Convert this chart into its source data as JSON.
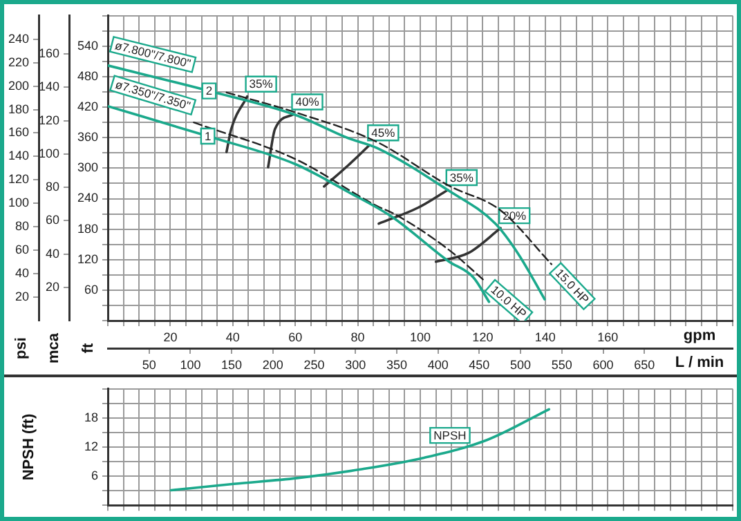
{
  "chart_data": [
    {
      "type": "line",
      "xlabel": "gpm",
      "x2label": "L / min",
      "ylabel": "ft",
      "y2label": "mca",
      "y3label": "psi",
      "marker": "none",
      "grid": true,
      "xlim": [
        0,
        200
      ],
      "xticks": [
        {
          "value": 0,
          "label": null
        },
        {
          "value": 5,
          "label": null
        },
        {
          "value": 10,
          "label": null
        },
        {
          "value": 15,
          "label": null
        },
        20,
        {
          "value": 25,
          "label": null
        },
        {
          "value": 30,
          "label": null
        },
        {
          "value": 35,
          "label": null
        },
        40,
        {
          "value": 45,
          "label": null
        },
        {
          "value": 50,
          "label": null
        },
        {
          "value": 55,
          "label": null
        },
        60,
        {
          "value": 65,
          "label": null
        },
        {
          "value": 70,
          "label": null
        },
        {
          "value": 75,
          "label": null
        },
        80,
        {
          "value": 85,
          "label": null
        },
        {
          "value": 90,
          "label": null
        },
        {
          "value": 95,
          "label": null
        },
        100,
        {
          "value": 105,
          "label": null
        },
        {
          "value": 110,
          "label": null
        },
        {
          "value": 115,
          "label": null
        },
        120,
        {
          "value": 125,
          "label": null
        },
        {
          "value": 130,
          "label": null
        },
        {
          "value": 135,
          "label": null
        },
        140,
        {
          "value": 145,
          "label": null
        },
        {
          "value": 150,
          "label": null
        },
        {
          "value": 155,
          "label": null
        },
        160,
        {
          "value": 165,
          "label": null
        },
        {
          "value": 170,
          "label": null
        },
        {
          "value": 175,
          "label": null
        },
        {
          "value": 180,
          "label": null
        },
        {
          "value": 185,
          "label": null
        },
        {
          "value": 190,
          "label": null
        },
        {
          "value": 195,
          "label": null
        },
        {
          "value": 200,
          "label": null
        }
      ],
      "x2lim": [
        0,
        757
      ],
      "x2ticks": [
        50,
        100,
        150,
        200,
        250,
        300,
        350,
        400,
        450,
        500,
        550,
        600,
        650
      ],
      "ylim": [
        0,
        600
      ],
      "yticks": [
        {
          "value": 0,
          "label": null
        },
        {
          "value": 30,
          "label": null
        },
        60,
        {
          "value": 90,
          "label": null
        },
        120,
        {
          "value": 150,
          "label": null
        },
        180,
        {
          "value": 210,
          "label": null
        },
        240,
        {
          "value": 270,
          "label": null
        },
        300,
        {
          "value": 330,
          "label": null
        },
        360,
        {
          "value": 390,
          "label": null
        },
        420,
        {
          "value": 450,
          "label": null
        },
        480,
        {
          "value": 510,
          "label": null
        },
        540,
        {
          "value": 570,
          "label": null
        },
        {
          "value": 600,
          "label": null
        }
      ],
      "y2lim": [
        0,
        183
      ],
      "y2ticks": [
        20,
        40,
        60,
        80,
        100,
        120,
        140,
        160
      ],
      "y3lim": [
        0,
        260
      ],
      "y3ticks": [
        20,
        40,
        60,
        80,
        100,
        120,
        140,
        160,
        180,
        200,
        220,
        240
      ],
      "series": [
        {
          "name": "ø7.800\"/7.800\"",
          "color": "#1ba98c",
          "x": [
            0,
            32.4,
            60,
            77,
            86,
            108.8,
            124,
            131.5,
            139.8
          ],
          "values": [
            502,
            452,
            405,
            359,
            340,
            257,
            191,
            130,
            42
          ]
        },
        {
          "name": "ø7.350\"/7.350\"",
          "color": "#1ba98c",
          "x": [
            0,
            32,
            60,
            77,
            91,
            109,
            117,
            122
          ],
          "values": [
            422,
            363,
            308,
            253,
            204,
            117,
            85,
            37
          ]
        },
        {
          "name": "15.0 HP",
          "color": "#222222",
          "line_style": "dashed",
          "x": [
            38,
            60,
            86,
            109,
            125.7,
            142
          ],
          "values": [
            449,
            410,
            352,
            266,
            217,
            111
          ]
        },
        {
          "name": "10.0 HP",
          "color": "#222222",
          "line_style": "dashed",
          "x": [
            27.5,
            60,
            86,
            91.7,
            109,
            121
          ],
          "values": [
            390,
            318,
            226,
            210,
            140,
            76
          ]
        },
        {
          "name": "35%",
          "color": "#333333",
          "x": [
            38,
            39.5,
            44.6
          ],
          "values": [
            332,
            377,
            441
          ]
        },
        {
          "name": "40%",
          "color": "#333333",
          "x": [
            51.3,
            53.5,
            59.4
          ],
          "values": [
            302,
            377,
            406
          ]
        },
        {
          "name": "45%",
          "color": "#333333",
          "x": [
            69.2,
            77,
            83.7
          ],
          "values": [
            264,
            306,
            345
          ]
        },
        {
          "name": "35%",
          "color": "#333333",
          "x": [
            86.7,
            99.2,
            108.8
          ],
          "values": [
            191,
            222,
            257
          ]
        },
        {
          "name": "20%",
          "color": "#333333",
          "x": [
            105,
            115.4,
            125.7
          ],
          "values": [
            116,
            133,
            182
          ]
        }
      ],
      "annotations": [
        {
          "text": "2",
          "x": 32.4,
          "y": 452
        },
        {
          "text": "1",
          "x": 32,
          "y": 363
        }
      ]
    },
    {
      "type": "line",
      "ylabel": "NPSH (ft)",
      "marker": "none",
      "grid": true,
      "tick_labels": "y",
      "xlim": [
        0,
        200
      ],
      "xticks": [
        {
          "value": 0,
          "label": null
        },
        {
          "value": 5,
          "label": null
        },
        {
          "value": 10,
          "label": null
        },
        {
          "value": 15,
          "label": null
        },
        20,
        {
          "value": 25,
          "label": null
        },
        {
          "value": 30,
          "label": null
        },
        {
          "value": 35,
          "label": null
        },
        40,
        {
          "value": 45,
          "label": null
        },
        {
          "value": 50,
          "label": null
        },
        {
          "value": 55,
          "label": null
        },
        60,
        {
          "value": 65,
          "label": null
        },
        {
          "value": 70,
          "label": null
        },
        {
          "value": 75,
          "label": null
        },
        80,
        {
          "value": 85,
          "label": null
        },
        {
          "value": 90,
          "label": null
        },
        {
          "value": 95,
          "label": null
        },
        100,
        {
          "value": 105,
          "label": null
        },
        {
          "value": 110,
          "label": null
        },
        {
          "value": 115,
          "label": null
        },
        120,
        {
          "value": 125,
          "label": null
        },
        {
          "value": 130,
          "label": null
        },
        {
          "value": 135,
          "label": null
        },
        140,
        {
          "value": 145,
          "label": null
        },
        {
          "value": 150,
          "label": null
        },
        {
          "value": 155,
          "label": null
        },
        160,
        {
          "value": 165,
          "label": null
        },
        {
          "value": 170,
          "label": null
        },
        {
          "value": 175,
          "label": null
        },
        {
          "value": 180,
          "label": null
        },
        {
          "value": 185,
          "label": null
        },
        {
          "value": 190,
          "label": null
        },
        {
          "value": 195,
          "label": null
        },
        {
          "value": 200,
          "label": null
        }
      ],
      "ylim": [
        0,
        24
      ],
      "yticks": [
        {
          "value": 0,
          "label": null
        },
        {
          "value": 3,
          "label": null
        },
        6,
        {
          "value": 9,
          "label": null
        },
        12,
        {
          "value": 15,
          "label": null
        },
        18,
        {
          "value": 21,
          "label": null
        },
        {
          "value": 24,
          "label": null
        }
      ],
      "series": [
        {
          "color": "#1ba98c",
          "x": [
            20.2,
            40.4,
            60.6,
            80.9,
            101.2,
            121.5,
            141.2
          ],
          "values": [
            3.1,
            4.4,
            5.6,
            7.4,
            9.8,
            13.5,
            19.8
          ]
        }
      ],
      "annotations": [
        {
          "text": "NPSH",
          "x": 109.5,
          "y": 14.4
        }
      ]
    }
  ]
}
